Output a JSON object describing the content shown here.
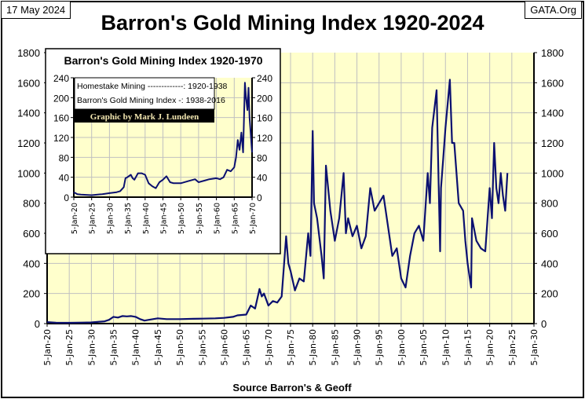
{
  "header": {
    "date": "17 May 2024",
    "site": "GATA.Org",
    "title": "Barron's Gold Mining Index 1920-2024",
    "source": "Source Barron's & Geoff"
  },
  "colors": {
    "plot_bg": "#ffffcc",
    "line": "#0b1070",
    "grid": "#c0c0c0"
  },
  "chart_data": [
    {
      "type": "line",
      "title": "Barron's Gold Mining Index 1920-2024",
      "xlabel": "Source Barron's & Geoff",
      "ylabel": "",
      "xlim": [
        1920,
        2030
      ],
      "ylim": [
        0,
        1800
      ],
      "grid": true,
      "x_ticks": [
        "5-Jan-20",
        "5-Jan-25",
        "5-Jan-30",
        "5-Jan-35",
        "5-Jan-40",
        "5-Jan-45",
        "5-Jan-50",
        "5-Jan-55",
        "5-Jan-60",
        "5-Jan-65",
        "5-Jan-70",
        "5-Jan-75",
        "5-Jan-80",
        "5-Jan-85",
        "5-Jan-90",
        "5-Jan-95",
        "5-Jan-00",
        "5-Jan-05",
        "5-Jan-10",
        "5-Jan-15",
        "5-Jan-20",
        "5-Jan-25",
        "5-Jan-30"
      ],
      "y_ticks": [
        0,
        200,
        400,
        600,
        800,
        1000,
        1200,
        1400,
        1600,
        1800
      ],
      "x": [
        1920,
        1922,
        1925,
        1928,
        1930,
        1933,
        1934,
        1935,
        1936,
        1937,
        1938,
        1939,
        1940,
        1941,
        1942,
        1943,
        1945,
        1947,
        1950,
        1953,
        1955,
        1958,
        1960,
        1962,
        1963,
        1965,
        1966,
        1967,
        1968,
        1968.5,
        1969,
        1970,
        1971,
        1972,
        1973,
        1974,
        1974.5,
        1975,
        1976,
        1977,
        1978,
        1979,
        1979.5,
        1980,
        1980.3,
        1981,
        1982,
        1982.5,
        1983,
        1984,
        1985,
        1986,
        1987,
        1987.5,
        1988,
        1989,
        1990,
        1991,
        1992,
        1993,
        1994,
        1995,
        1996,
        1997,
        1998,
        1999,
        2000,
        2001,
        2002,
        2003,
        2004,
        2005,
        2006,
        2006.5,
        2007,
        2008,
        2008.8,
        2009,
        2009.5,
        2010,
        2011,
        2011.5,
        2012,
        2013,
        2014,
        2014.5,
        2015,
        2015.8,
        2016,
        2017,
        2018,
        2019,
        2020,
        2020.5,
        2021,
        2021.5,
        2022,
        2022.5,
        2023,
        2023.5,
        2024
      ],
      "values": [
        10,
        6,
        5,
        7,
        8,
        15,
        25,
        45,
        40,
        50,
        48,
        50,
        45,
        30,
        20,
        25,
        35,
        30,
        30,
        32,
        33,
        35,
        38,
        45,
        55,
        60,
        120,
        100,
        230,
        180,
        200,
        120,
        150,
        140,
        180,
        580,
        400,
        350,
        220,
        300,
        280,
        600,
        450,
        1280,
        800,
        700,
        450,
        300,
        1050,
        750,
        550,
        700,
        1000,
        600,
        700,
        580,
        650,
        500,
        580,
        900,
        750,
        800,
        850,
        650,
        450,
        500,
        300,
        240,
        450,
        600,
        650,
        550,
        1000,
        800,
        1300,
        1550,
        480,
        900,
        1100,
        1300,
        1620,
        1200,
        1200,
        800,
        750,
        550,
        400,
        240,
        700,
        550,
        500,
        480,
        900,
        700,
        1200,
        900,
        800,
        1000,
        850,
        750,
        1000
      ]
    },
    {
      "type": "line",
      "title": "Barron's Gold Mining Index 1920-1970",
      "xlim": [
        1920,
        1970
      ],
      "ylim": [
        0,
        240
      ],
      "grid": true,
      "legend": [
        "Homestake Mining -------------: 1920-1938",
        "Barron's Gold Mining Index -: 1938-2016"
      ],
      "credit": "Graphic by Mark J. Lundeen",
      "x_ticks": [
        "5-Jan-20",
        "5-Jan-25",
        "5-Jan-30",
        "5-Jan-35",
        "5-Jan-40",
        "5-Jan-45",
        "5-Jan-50",
        "5-Jan-55",
        "5-Jan-60",
        "5-Jan-65",
        "5-Jan-70"
      ],
      "y_ticks": [
        0,
        40,
        80,
        120,
        160,
        200,
        240
      ],
      "x": [
        1920,
        1921,
        1922,
        1925,
        1928,
        1930,
        1932,
        1933,
        1934,
        1934.5,
        1935,
        1936,
        1936.5,
        1937,
        1938,
        1939,
        1940,
        1941,
        1942,
        1943,
        1944,
        1945,
        1946,
        1947,
        1948,
        1950,
        1952,
        1954,
        1955,
        1957,
        1958,
        1960,
        1961,
        1962,
        1963,
        1964,
        1965,
        1965.5,
        1966,
        1966.5,
        1967,
        1967.5,
        1968,
        1968.3,
        1968.7,
        1969,
        1969.3,
        1969.6,
        1970
      ],
      "values": [
        10,
        6,
        5,
        4,
        6,
        8,
        10,
        12,
        20,
        38,
        40,
        45,
        38,
        35,
        48,
        48,
        45,
        28,
        22,
        18,
        30,
        35,
        42,
        30,
        28,
        28,
        32,
        36,
        30,
        34,
        36,
        38,
        36,
        40,
        55,
        52,
        60,
        80,
        115,
        95,
        130,
        90,
        230,
        200,
        175,
        220,
        160,
        130,
        90
      ]
    }
  ]
}
